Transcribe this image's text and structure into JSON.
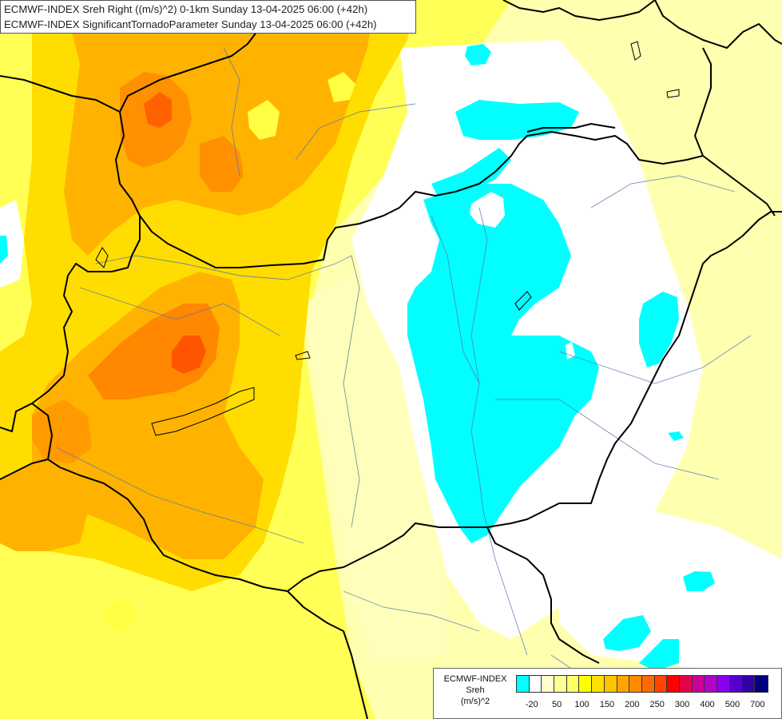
{
  "titles": {
    "line1": "ECMWF-INDEX Sreh Right ((m/s)^2) 0-1km Sunday 13-04-2025 06:00 (+42h)",
    "line2": "ECMWF-INDEX SignificantTornadoParameter Sunday 13-04-2025 06:00 (+42h)"
  },
  "legend": {
    "title_line1": "ECMWF-INDEX",
    "title_line2": "Sreh",
    "title_line3": "(m/s)^2",
    "colors": [
      "#00ffff",
      "#ffffff",
      "#ffffcc",
      "#ffff99",
      "#ffff66",
      "#ffff00",
      "#ffe000",
      "#ffc400",
      "#ffa500",
      "#ff8c00",
      "#ff6a00",
      "#ff4500",
      "#ff0000",
      "#e6004c",
      "#cc0099",
      "#b300cc",
      "#8800ee",
      "#5500cc",
      "#3300aa",
      "#00007f"
    ],
    "ticks": [
      {
        "label": "-20",
        "slot": 1
      },
      {
        "label": "50",
        "slot": 3
      },
      {
        "label": "100",
        "slot": 5
      },
      {
        "label": "150",
        "slot": 7
      },
      {
        "label": "200",
        "slot": 9
      },
      {
        "label": "250",
        "slot": 11
      },
      {
        "label": "300",
        "slot": 13
      },
      {
        "label": "400",
        "slot": 15
      },
      {
        "label": "500",
        "slot": 17
      },
      {
        "label": "700",
        "slot": 19
      }
    ]
  },
  "palette": {
    "light_yellow": "#ffffaa",
    "yellow": "#ffff33",
    "gold": "#ffd700",
    "orange": "#ffb000",
    "dark_orange": "#ff8c00",
    "red_orange": "#ff5a00",
    "cyan": "#00ffff",
    "white": "#ffffff",
    "border": "#000000",
    "river": "#5577aa"
  }
}
